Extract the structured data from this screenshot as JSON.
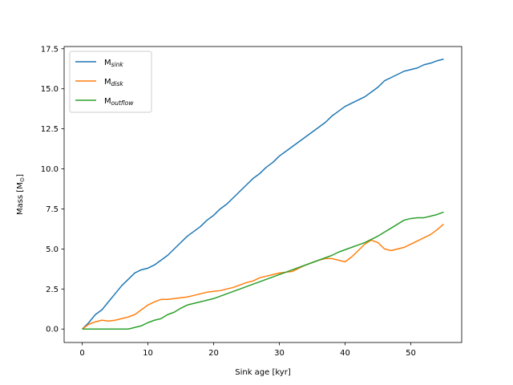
{
  "chart_data": {
    "type": "line",
    "xlabel": "Sink age [kyr]",
    "ylabel_text": "Mass [M",
    "ylabel_sym": "⊙",
    "ylabel_close": "]",
    "xlim": [
      -2.75,
      57.75
    ],
    "ylim": [
      -0.84,
      17.64
    ],
    "x_ticks": [
      0,
      10,
      20,
      30,
      40,
      50
    ],
    "y_ticks": [
      0.0,
      2.5,
      5.0,
      7.5,
      10.0,
      12.5,
      15.0,
      17.5
    ],
    "x_tick_labels": [
      "0",
      "10",
      "20",
      "30",
      "40",
      "50"
    ],
    "y_tick_labels": [
      "0.0",
      "2.5",
      "5.0",
      "7.5",
      "10.0",
      "12.5",
      "15.0",
      "17.5"
    ],
    "grid": false,
    "legend_position": "upper-left",
    "series": [
      {
        "name_base": "M",
        "name_sub": "sink",
        "color": "#1f77b4",
        "x": [
          0,
          1,
          2,
          3,
          4,
          5,
          6,
          7,
          8,
          9,
          10,
          11,
          12,
          13,
          14,
          15,
          16,
          17,
          18,
          19,
          20,
          21,
          22,
          23,
          24,
          25,
          26,
          27,
          28,
          29,
          30,
          31,
          32,
          33,
          34,
          35,
          36,
          37,
          38,
          39,
          40,
          41,
          42,
          43,
          44,
          45,
          46,
          47,
          48,
          49,
          50,
          51,
          52,
          53,
          54,
          55
        ],
        "y": [
          0.0,
          0.4,
          0.9,
          1.2,
          1.7,
          2.2,
          2.7,
          3.1,
          3.5,
          3.7,
          3.8,
          4.0,
          4.3,
          4.6,
          5.0,
          5.4,
          5.8,
          6.1,
          6.4,
          6.8,
          7.1,
          7.5,
          7.8,
          8.2,
          8.6,
          9.0,
          9.4,
          9.7,
          10.1,
          10.4,
          10.8,
          11.1,
          11.4,
          11.7,
          12.0,
          12.3,
          12.6,
          12.9,
          13.3,
          13.6,
          13.9,
          14.1,
          14.3,
          14.5,
          14.8,
          15.1,
          15.5,
          15.7,
          15.9,
          16.1,
          16.2,
          16.3,
          16.5,
          16.6,
          16.75,
          16.85
        ]
      },
      {
        "name_base": "M",
        "name_sub": "disk",
        "color": "#ff7f0e",
        "x": [
          0,
          1,
          2,
          3,
          4,
          5,
          6,
          7,
          8,
          9,
          10,
          11,
          12,
          13,
          14,
          15,
          16,
          17,
          18,
          19,
          20,
          21,
          22,
          23,
          24,
          25,
          26,
          27,
          28,
          29,
          30,
          31,
          32,
          33,
          34,
          35,
          36,
          37,
          38,
          39,
          40,
          41,
          42,
          43,
          44,
          45,
          46,
          47,
          48,
          49,
          50,
          51,
          52,
          53,
          54,
          55
        ],
        "y": [
          0.0,
          0.3,
          0.45,
          0.55,
          0.5,
          0.55,
          0.65,
          0.75,
          0.9,
          1.2,
          1.5,
          1.7,
          1.85,
          1.85,
          1.9,
          1.95,
          2.0,
          2.1,
          2.2,
          2.3,
          2.35,
          2.4,
          2.5,
          2.6,
          2.75,
          2.9,
          3.0,
          3.2,
          3.3,
          3.4,
          3.5,
          3.55,
          3.6,
          3.8,
          4.0,
          4.15,
          4.3,
          4.4,
          4.4,
          4.3,
          4.2,
          4.5,
          4.9,
          5.3,
          5.55,
          5.4,
          5.0,
          4.9,
          5.0,
          5.1,
          5.3,
          5.5,
          5.7,
          5.9,
          6.2,
          6.55
        ]
      },
      {
        "name_base": "M",
        "name_sub": "outflow",
        "color": "#2ca02c",
        "x": [
          0,
          1,
          2,
          3,
          4,
          5,
          6,
          7,
          8,
          9,
          10,
          11,
          12,
          13,
          14,
          15,
          16,
          17,
          18,
          19,
          20,
          21,
          22,
          23,
          24,
          25,
          26,
          27,
          28,
          29,
          30,
          31,
          32,
          33,
          34,
          35,
          36,
          37,
          38,
          39,
          40,
          41,
          42,
          43,
          44,
          45,
          46,
          47,
          48,
          49,
          50,
          51,
          52,
          53,
          54,
          55
        ],
        "y": [
          0.0,
          0.0,
          0.0,
          0.0,
          0.0,
          0.0,
          0.0,
          0.0,
          0.1,
          0.2,
          0.4,
          0.55,
          0.65,
          0.9,
          1.05,
          1.3,
          1.5,
          1.6,
          1.7,
          1.8,
          1.9,
          2.05,
          2.2,
          2.35,
          2.5,
          2.65,
          2.8,
          2.95,
          3.1,
          3.25,
          3.4,
          3.55,
          3.7,
          3.85,
          4.0,
          4.15,
          4.3,
          4.45,
          4.6,
          4.8,
          4.95,
          5.1,
          5.25,
          5.4,
          5.6,
          5.8,
          6.05,
          6.3,
          6.55,
          6.8,
          6.9,
          6.95,
          6.95,
          7.05,
          7.15,
          7.3
        ]
      }
    ]
  }
}
